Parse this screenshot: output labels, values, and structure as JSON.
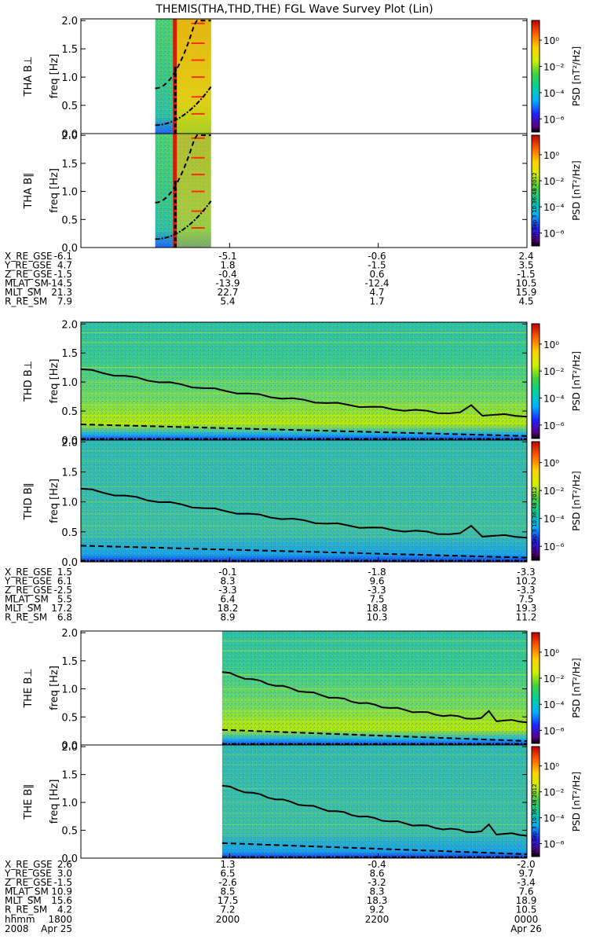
{
  "title": "THEMIS(THA,THD,THE) FGL Wave Survey Plot (Lin)",
  "colorbar": {
    "label": "PSD [nT²/Hz]",
    "ticks": [
      "10⁰",
      "10⁻²",
      "10⁻⁴",
      "10⁻⁶"
    ]
  },
  "timestamp": "Mon Sep 3 10:36:48 2012",
  "chart_data": {
    "type": "heatmap",
    "x_ticks": [
      "1800",
      "2000",
      "2200",
      "0000"
    ],
    "time_row_label": "hhmm",
    "date_row_label": "2008",
    "date_labels": [
      "Apr 25",
      "Apr 26"
    ],
    "ylabel": "freq [Hz]",
    "ylim": [
      0,
      2.0
    ],
    "y_ticks": [
      "0.0",
      "0.5",
      "1.0",
      "1.5",
      "2.0"
    ],
    "colorbar_exponents": [
      0,
      -2,
      -4,
      -6
    ],
    "probes": [
      {
        "name": "THA",
        "panels": [
          "THA B⊥",
          "THA B∥"
        ],
        "data_start_hour": 19.0,
        "data_end_hour": 19.75,
        "ephemeris": [
          {
            "label": "X_RE_GSE",
            "values": [
              "-6.1",
              "-5.1",
              "-0.6",
              "2.4"
            ]
          },
          {
            "label": "Y_RE_GSE",
            "values": [
              "4.7",
              "1.8",
              "-1.5",
              "3.5"
            ]
          },
          {
            "label": "Z_RE_GSE",
            "values": [
              "-1.5",
              "-0.4",
              "0.6",
              "-1.5"
            ]
          },
          {
            "label": "MLAT_SM",
            "values": [
              "-14.5",
              "-13.9",
              "-12.4",
              "10.5"
            ]
          },
          {
            "label": "MLT_SM",
            "values": [
              "21.3",
              "22.7",
              "4.7",
              "15.9"
            ]
          },
          {
            "label": "R_RE_SM",
            "values": [
              "7.9",
              "5.4",
              "1.7",
              "4.5"
            ]
          }
        ]
      },
      {
        "name": "THD",
        "panels": [
          "THD B⊥",
          "THD B∥"
        ],
        "data_start_hour": 18.0,
        "data_end_hour": 24.0,
        "ephemeris": [
          {
            "label": "X_RE_GSE",
            "values": [
              "1.5",
              "-0.1",
              "-1.8",
              "-3.3"
            ]
          },
          {
            "label": "Y_RE_GSE",
            "values": [
              "6.1",
              "8.3",
              "9.6",
              "10.2"
            ]
          },
          {
            "label": "Z_RE_GSE",
            "values": [
              "-2.5",
              "-3.3",
              "-3.3",
              "-3.3"
            ]
          },
          {
            "label": "MLAT_SM",
            "values": [
              "5.5",
              "6.4",
              "7.5",
              "7.5"
            ]
          },
          {
            "label": "MLT_SM",
            "values": [
              "17.2",
              "18.2",
              "18.8",
              "19.3"
            ]
          },
          {
            "label": "R_RE_SM",
            "values": [
              "6.8",
              "8.9",
              "10.3",
              "11.2"
            ]
          }
        ]
      },
      {
        "name": "THE",
        "panels": [
          "THE B⊥",
          "THE B∥"
        ],
        "data_start_hour": 19.9,
        "data_end_hour": 24.0,
        "ephemeris": [
          {
            "label": "X_RE_GSE",
            "values": [
              "2.6",
              "1.3",
              "-0.4",
              "-2.0"
            ]
          },
          {
            "label": "Y_RE_GSE",
            "values": [
              "3.0",
              "6.5",
              "8.6",
              "9.7"
            ]
          },
          {
            "label": "Z_RE_GSE",
            "values": [
              "-1.5",
              "-2.6",
              "-3.2",
              "-3.4"
            ]
          },
          {
            "label": "MLAT_SM",
            "values": [
              "10.9",
              "8.5",
              "8.3",
              "7.6"
            ]
          },
          {
            "label": "MLT_SM",
            "values": [
              "15.6",
              "17.5",
              "18.3",
              "18.9"
            ]
          },
          {
            "label": "R_RE_SM",
            "values": [
              "4.2",
              "7.2",
              "9.2",
              "10.5"
            ]
          }
        ]
      }
    ]
  }
}
